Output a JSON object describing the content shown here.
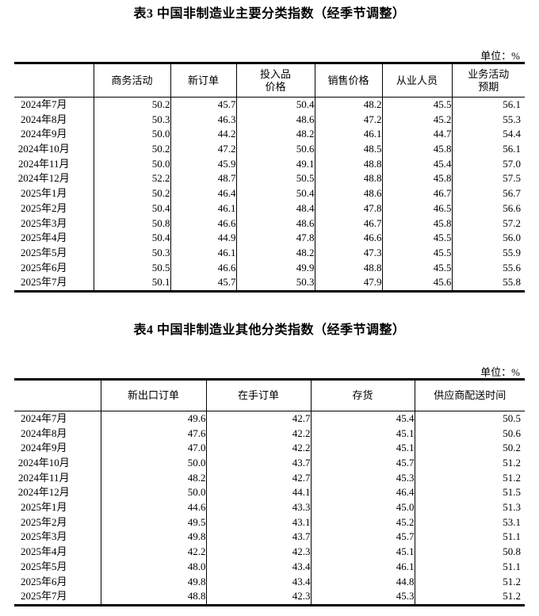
{
  "table3": {
    "title": "表3 中国非制造业主要分类指数（经季节调整）",
    "unit_label": "单位：%",
    "columns": [
      "商务活动",
      "新订单",
      "投入品\n价格",
      "销售价格",
      "从业人员",
      "业务活动\n预期"
    ],
    "rows": [
      {
        "month": "2024年7月",
        "values": [
          "50.2",
          "45.7",
          "50.4",
          "48.2",
          "45.5",
          "56.1"
        ]
      },
      {
        "month": "2024年8月",
        "values": [
          "50.3",
          "46.3",
          "48.6",
          "47.2",
          "45.2",
          "55.3"
        ]
      },
      {
        "month": "2024年9月",
        "values": [
          "50.0",
          "44.2",
          "48.2",
          "46.1",
          "44.7",
          "54.4"
        ]
      },
      {
        "month": "2024年10月",
        "values": [
          "50.2",
          "47.2",
          "50.6",
          "48.5",
          "45.8",
          "56.1"
        ]
      },
      {
        "month": "2024年11月",
        "values": [
          "50.0",
          "45.9",
          "49.1",
          "48.8",
          "45.4",
          "57.0"
        ]
      },
      {
        "month": "2024年12月",
        "values": [
          "52.2",
          "48.7",
          "50.5",
          "48.8",
          "45.8",
          "57.5"
        ]
      },
      {
        "month": "2025年1月",
        "values": [
          "50.2",
          "46.4",
          "50.4",
          "48.6",
          "46.7",
          "56.7"
        ]
      },
      {
        "month": "2025年2月",
        "values": [
          "50.4",
          "46.1",
          "48.4",
          "47.8",
          "46.5",
          "56.6"
        ]
      },
      {
        "month": "2025年3月",
        "values": [
          "50.8",
          "46.6",
          "48.6",
          "46.7",
          "45.8",
          "57.2"
        ]
      },
      {
        "month": "2025年4月",
        "values": [
          "50.4",
          "44.9",
          "47.8",
          "46.6",
          "45.5",
          "56.0"
        ]
      },
      {
        "month": "2025年5月",
        "values": [
          "50.3",
          "46.1",
          "48.2",
          "47.3",
          "45.5",
          "55.9"
        ]
      },
      {
        "month": "2025年6月",
        "values": [
          "50.5",
          "46.6",
          "49.9",
          "48.8",
          "45.5",
          "55.6"
        ]
      },
      {
        "month": "2025年7月",
        "values": [
          "50.1",
          "45.7",
          "50.3",
          "47.9",
          "45.6",
          "55.8"
        ]
      }
    ]
  },
  "table4": {
    "title": "表4 中国非制造业其他分类指数（经季节调整）",
    "unit_label": "单位：%",
    "columns": [
      "新出口订单",
      "在手订单",
      "存货",
      "供应商配送时间"
    ],
    "rows": [
      {
        "month": "2024年7月",
        "values": [
          "49.6",
          "42.7",
          "45.4",
          "50.5"
        ]
      },
      {
        "month": "2024年8月",
        "values": [
          "47.6",
          "42.2",
          "45.1",
          "50.6"
        ]
      },
      {
        "month": "2024年9月",
        "values": [
          "47.0",
          "42.2",
          "45.1",
          "50.2"
        ]
      },
      {
        "month": "2024年10月",
        "values": [
          "50.0",
          "43.7",
          "45.7",
          "51.2"
        ]
      },
      {
        "month": "2024年11月",
        "values": [
          "48.2",
          "42.7",
          "45.3",
          "51.2"
        ]
      },
      {
        "month": "2024年12月",
        "values": [
          "50.0",
          "44.1",
          "46.4",
          "51.5"
        ]
      },
      {
        "month": "2025年1月",
        "values": [
          "44.6",
          "43.3",
          "45.0",
          "51.3"
        ]
      },
      {
        "month": "2025年2月",
        "values": [
          "49.5",
          "43.1",
          "45.2",
          "53.1"
        ]
      },
      {
        "month": "2025年3月",
        "values": [
          "49.8",
          "43.7",
          "45.7",
          "51.1"
        ]
      },
      {
        "month": "2025年4月",
        "values": [
          "42.2",
          "42.3",
          "45.1",
          "50.8"
        ]
      },
      {
        "month": "2025年5月",
        "values": [
          "48.0",
          "43.4",
          "46.1",
          "51.1"
        ]
      },
      {
        "month": "2025年6月",
        "values": [
          "49.8",
          "43.4",
          "44.8",
          "51.2"
        ]
      },
      {
        "month": "2025年7月",
        "values": [
          "48.8",
          "42.3",
          "45.3",
          "51.2"
        ]
      }
    ]
  }
}
